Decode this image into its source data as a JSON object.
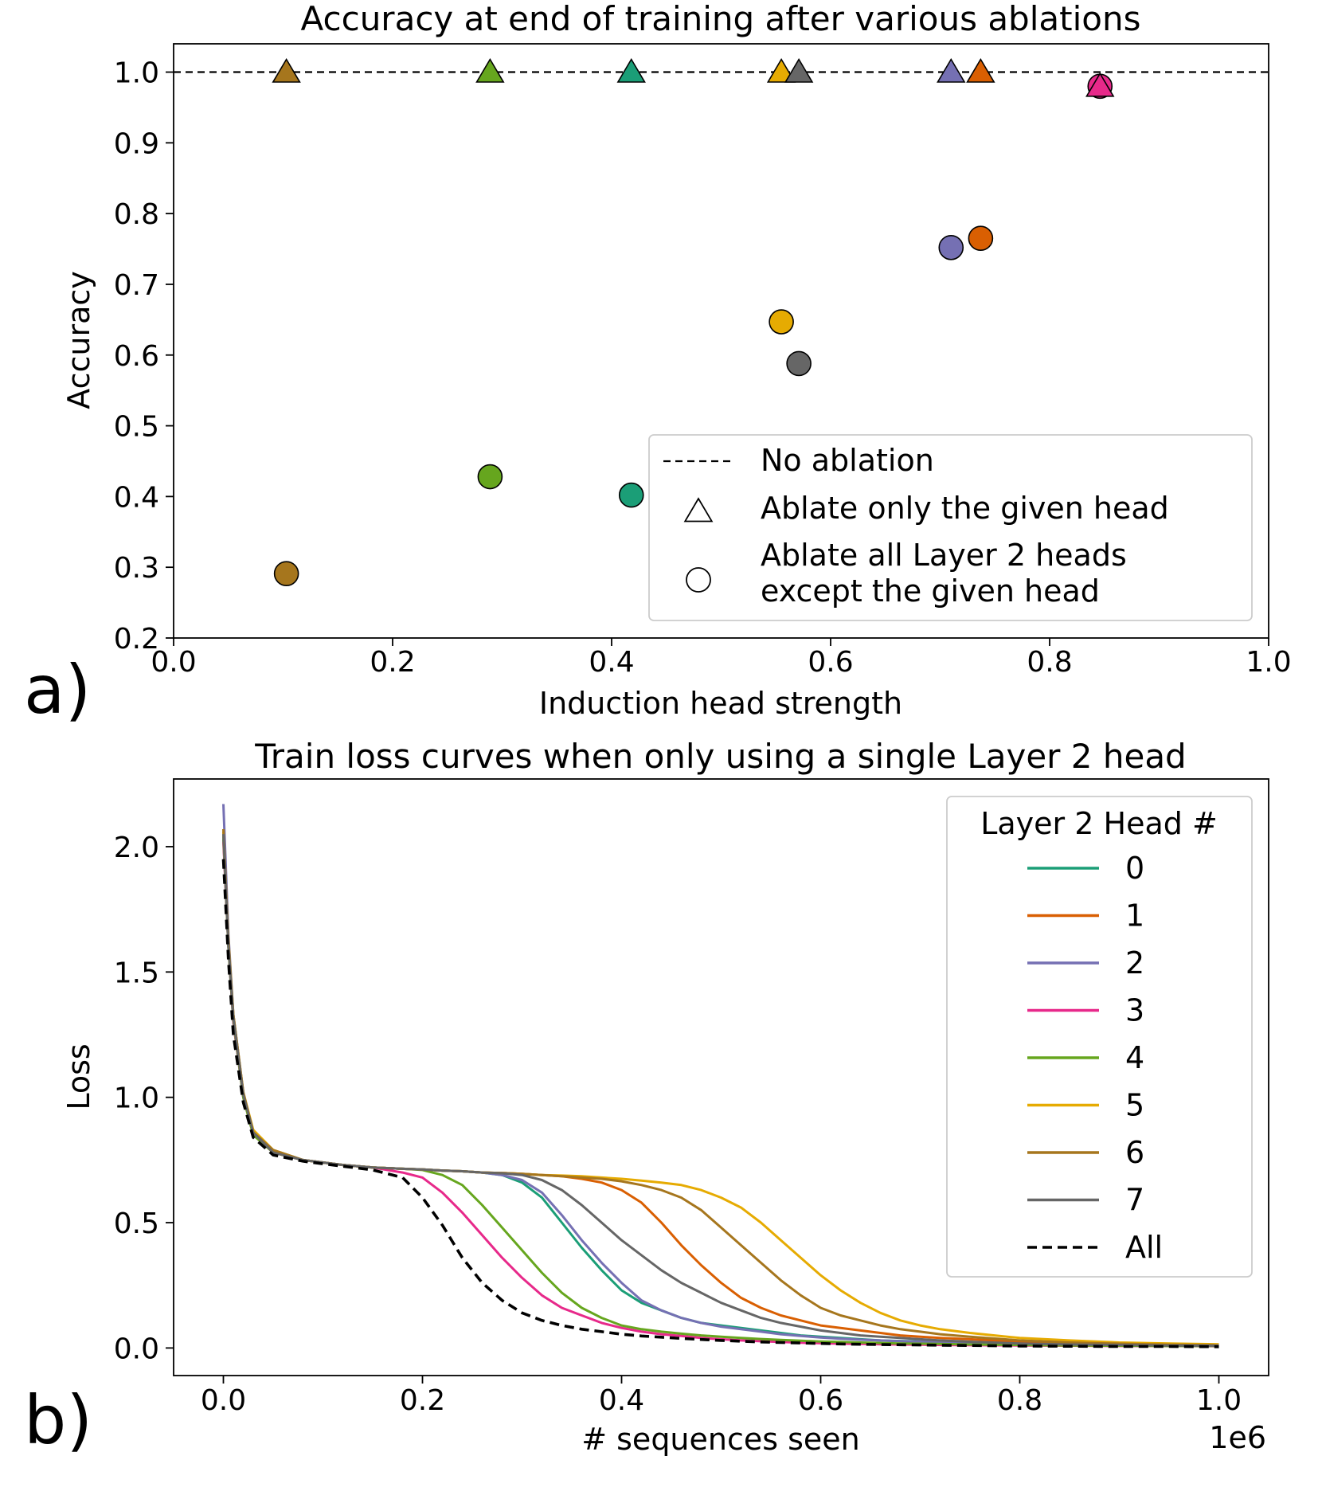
{
  "panel_labels": {
    "a": "a)",
    "b": "b)"
  },
  "chart_data": [
    {
      "type": "scatter",
      "title": "Accuracy at end of training after various ablations",
      "xlabel": "Induction head strength",
      "ylabel": "Accuracy",
      "xlim": [
        0.0,
        1.0
      ],
      "ylim": [
        0.2,
        1.04
      ],
      "xticks": [
        "0.0",
        "0.2",
        "0.4",
        "0.6",
        "0.8",
        "1.0"
      ],
      "yticks": [
        "0.2",
        "0.3",
        "0.4",
        "0.5",
        "0.6",
        "0.7",
        "0.8",
        "0.9",
        "1.0"
      ],
      "grid": false,
      "reference_line": {
        "y": 1.0,
        "style": "dashed",
        "label": "No ablation"
      },
      "legend": {
        "placement": "lower-right",
        "entries": [
          {
            "marker": "dashed-line",
            "label": "No ablation"
          },
          {
            "marker": "triangle",
            "label": "Ablate only the given head"
          },
          {
            "marker": "circle",
            "label_lines": [
              "Ablate all Layer 2 heads",
              "except the given head"
            ]
          }
        ]
      },
      "points": [
        {
          "head": 6,
          "color": "#a6761d",
          "x": 0.103,
          "triangle_y": 1.0,
          "circle_y": 0.291
        },
        {
          "head": 4,
          "color": "#66a61e",
          "x": 0.289,
          "triangle_y": 1.0,
          "circle_y": 0.428
        },
        {
          "head": 0,
          "color": "#1b9e77",
          "x": 0.418,
          "triangle_y": 1.0,
          "circle_y": 0.402
        },
        {
          "head": 5,
          "color": "#e6ab02",
          "x": 0.555,
          "triangle_y": 1.0,
          "circle_y": 0.647
        },
        {
          "head": 7,
          "color": "#666666",
          "x": 0.571,
          "triangle_y": 1.0,
          "circle_y": 0.588
        },
        {
          "head": 2,
          "color": "#7570b3",
          "x": 0.71,
          "triangle_y": 1.0,
          "circle_y": 0.752
        },
        {
          "head": 1,
          "color": "#d95f02",
          "x": 0.737,
          "triangle_y": 1.0,
          "circle_y": 0.765
        },
        {
          "head": 3,
          "color": "#e7298a",
          "x": 0.846,
          "triangle_y": 0.98,
          "circle_y": 0.98
        }
      ]
    },
    {
      "type": "line",
      "title": "Train loss curves when only using a single Layer 2 head",
      "xlabel": "# sequences seen",
      "ylabel": "Loss",
      "x_offset_label": "1e6",
      "xlim": [
        -0.05,
        1.05
      ],
      "ylim": [
        -0.11,
        2.27
      ],
      "xticks": [
        "0.0",
        "0.2",
        "0.4",
        "0.6",
        "0.8",
        "1.0"
      ],
      "yticks": [
        "0.0",
        "0.5",
        "1.0",
        "1.5",
        "2.0"
      ],
      "grid": false,
      "legend": {
        "placement": "upper-right",
        "title": "Layer 2 Head #"
      },
      "x": [
        0,
        0.005,
        0.01,
        0.02,
        0.03,
        0.05,
        0.08,
        0.1,
        0.12,
        0.15,
        0.18,
        0.2,
        0.22,
        0.24,
        0.26,
        0.28,
        0.3,
        0.32,
        0.34,
        0.36,
        0.38,
        0.4,
        0.42,
        0.44,
        0.46,
        0.48,
        0.5,
        0.52,
        0.54,
        0.56,
        0.58,
        0.6,
        0.62,
        0.64,
        0.66,
        0.68,
        0.7,
        0.72,
        0.75,
        0.8,
        0.85,
        0.9,
        0.95,
        1.0
      ],
      "series": [
        {
          "name": "0",
          "color": "#1b9e77",
          "values": [
            2.03,
            1.6,
            1.3,
            1.0,
            0.85,
            0.78,
            0.75,
            0.74,
            0.73,
            0.72,
            0.715,
            0.712,
            0.708,
            0.705,
            0.7,
            0.69,
            0.66,
            0.6,
            0.5,
            0.4,
            0.31,
            0.23,
            0.18,
            0.15,
            0.12,
            0.1,
            0.09,
            0.08,
            0.07,
            0.06,
            0.05,
            0.045,
            0.04,
            0.035,
            0.03,
            0.028,
            0.026,
            0.024,
            0.02,
            0.016,
            0.013,
            0.011,
            0.01,
            0.009
          ]
        },
        {
          "name": "1",
          "color": "#d95f02",
          "values": [
            2.05,
            1.61,
            1.32,
            1.01,
            0.86,
            0.78,
            0.75,
            0.74,
            0.73,
            0.72,
            0.715,
            0.712,
            0.708,
            0.705,
            0.7,
            0.698,
            0.695,
            0.69,
            0.685,
            0.675,
            0.66,
            0.63,
            0.58,
            0.5,
            0.41,
            0.33,
            0.26,
            0.2,
            0.16,
            0.13,
            0.11,
            0.09,
            0.08,
            0.07,
            0.06,
            0.05,
            0.045,
            0.04,
            0.035,
            0.025,
            0.018,
            0.014,
            0.012,
            0.01
          ]
        },
        {
          "name": "2",
          "color": "#7570b3",
          "values": [
            2.17,
            1.65,
            1.33,
            1.02,
            0.86,
            0.78,
            0.75,
            0.74,
            0.73,
            0.72,
            0.715,
            0.712,
            0.708,
            0.705,
            0.7,
            0.69,
            0.67,
            0.62,
            0.53,
            0.43,
            0.34,
            0.26,
            0.19,
            0.15,
            0.12,
            0.1,
            0.085,
            0.075,
            0.065,
            0.055,
            0.048,
            0.042,
            0.037,
            0.033,
            0.03,
            0.027,
            0.025,
            0.023,
            0.02,
            0.016,
            0.013,
            0.011,
            0.01,
            0.009
          ]
        },
        {
          "name": "3",
          "color": "#e7298a",
          "values": [
            2.02,
            1.6,
            1.3,
            1.0,
            0.85,
            0.78,
            0.75,
            0.74,
            0.73,
            0.72,
            0.7,
            0.68,
            0.62,
            0.54,
            0.45,
            0.36,
            0.28,
            0.21,
            0.16,
            0.13,
            0.1,
            0.08,
            0.065,
            0.055,
            0.048,
            0.04,
            0.035,
            0.03,
            0.027,
            0.024,
            0.021,
            0.019,
            0.017,
            0.016,
            0.015,
            0.014,
            0.013,
            0.012,
            0.011,
            0.01,
            0.009,
            0.008,
            0.008,
            0.007
          ]
        },
        {
          "name": "4",
          "color": "#66a61e",
          "values": [
            2.04,
            1.6,
            1.31,
            1.0,
            0.85,
            0.78,
            0.75,
            0.74,
            0.73,
            0.72,
            0.715,
            0.71,
            0.69,
            0.65,
            0.57,
            0.48,
            0.39,
            0.3,
            0.22,
            0.16,
            0.12,
            0.09,
            0.075,
            0.065,
            0.057,
            0.05,
            0.045,
            0.04,
            0.036,
            0.032,
            0.029,
            0.026,
            0.024,
            0.022,
            0.02,
            0.018,
            0.017,
            0.016,
            0.014,
            0.012,
            0.01,
            0.009,
            0.008,
            0.008
          ]
        },
        {
          "name": "5",
          "color": "#e6ab02",
          "values": [
            2.06,
            1.63,
            1.33,
            1.02,
            0.87,
            0.79,
            0.75,
            0.74,
            0.73,
            0.72,
            0.715,
            0.712,
            0.708,
            0.705,
            0.7,
            0.698,
            0.695,
            0.69,
            0.688,
            0.685,
            0.68,
            0.675,
            0.668,
            0.66,
            0.65,
            0.63,
            0.6,
            0.56,
            0.5,
            0.43,
            0.36,
            0.29,
            0.23,
            0.18,
            0.14,
            0.11,
            0.09,
            0.075,
            0.06,
            0.04,
            0.03,
            0.022,
            0.018,
            0.015
          ]
        },
        {
          "name": "6",
          "color": "#a6761d",
          "values": [
            2.07,
            1.62,
            1.33,
            1.02,
            0.86,
            0.79,
            0.75,
            0.74,
            0.73,
            0.72,
            0.715,
            0.712,
            0.708,
            0.705,
            0.7,
            0.698,
            0.695,
            0.69,
            0.685,
            0.68,
            0.675,
            0.665,
            0.65,
            0.63,
            0.6,
            0.55,
            0.48,
            0.41,
            0.34,
            0.27,
            0.21,
            0.16,
            0.13,
            0.11,
            0.09,
            0.075,
            0.065,
            0.055,
            0.045,
            0.03,
            0.022,
            0.017,
            0.013,
            0.011
          ]
        },
        {
          "name": "7",
          "color": "#666666",
          "values": [
            2.05,
            1.61,
            1.32,
            1.01,
            0.86,
            0.78,
            0.75,
            0.74,
            0.73,
            0.72,
            0.715,
            0.712,
            0.708,
            0.705,
            0.7,
            0.697,
            0.69,
            0.67,
            0.63,
            0.57,
            0.5,
            0.43,
            0.37,
            0.31,
            0.26,
            0.22,
            0.18,
            0.15,
            0.12,
            0.1,
            0.085,
            0.07,
            0.06,
            0.05,
            0.045,
            0.04,
            0.035,
            0.03,
            0.025,
            0.018,
            0.014,
            0.012,
            0.01,
            0.009
          ]
        },
        {
          "name": "All",
          "color": "#000000",
          "dashed": true,
          "values": [
            1.95,
            1.55,
            1.25,
            0.98,
            0.84,
            0.77,
            0.745,
            0.735,
            0.725,
            0.71,
            0.68,
            0.6,
            0.49,
            0.36,
            0.26,
            0.19,
            0.14,
            0.11,
            0.09,
            0.075,
            0.065,
            0.055,
            0.048,
            0.043,
            0.038,
            0.034,
            0.03,
            0.027,
            0.024,
            0.022,
            0.02,
            0.018,
            0.016,
            0.015,
            0.014,
            0.013,
            0.012,
            0.011,
            0.01,
            0.008,
            0.007,
            0.006,
            0.006,
            0.005
          ]
        }
      ]
    }
  ]
}
